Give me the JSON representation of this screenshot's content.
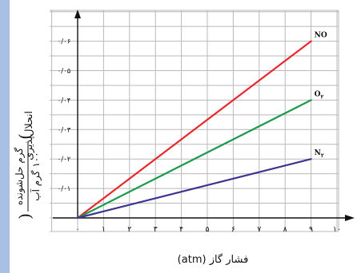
{
  "chart_data": {
    "type": "line",
    "x": [
      0,
      9
    ],
    "xlim": [
      0,
      10.8
    ],
    "ylim": [
      0,
      0.07
    ],
    "x_tick_labels": [
      "۰",
      "۱",
      "۲",
      "۳",
      "۴",
      "۵",
      "۶",
      "۷",
      "۸",
      "۹",
      "۱۰"
    ],
    "y_tick_labels": [
      "۰/۰۱",
      "۰/۰۲",
      "۰/۰۳",
      "۰/۰۴",
      "۰/۰۵",
      "۰/۰۶"
    ],
    "xlabel": "فشار گاز (atm)",
    "ylabel_main": "انحلال‌پذیری",
    "ylabel_fraction_numerator": "گرم حل‌شونده",
    "ylabel_fraction_denominator": "۱۰۰ گرم آب",
    "grid": true,
    "series": [
      {
        "name": "NO",
        "label_text": "NO",
        "values": [
          0,
          0.06
        ],
        "color": "#e8262d"
      },
      {
        "name": "O₂",
        "label_text": "O",
        "label_sub": "۲",
        "values": [
          0,
          0.04
        ],
        "color": "#1b9a4b"
      },
      {
        "name": "N₂",
        "label_text": "N",
        "label_sub": "۲",
        "values": [
          0,
          0.02
        ],
        "color": "#3b3591"
      }
    ],
    "colors": {
      "grid": "#b9b9b9",
      "axis": "#111111",
      "left_strip": "#a9bfe3"
    }
  }
}
